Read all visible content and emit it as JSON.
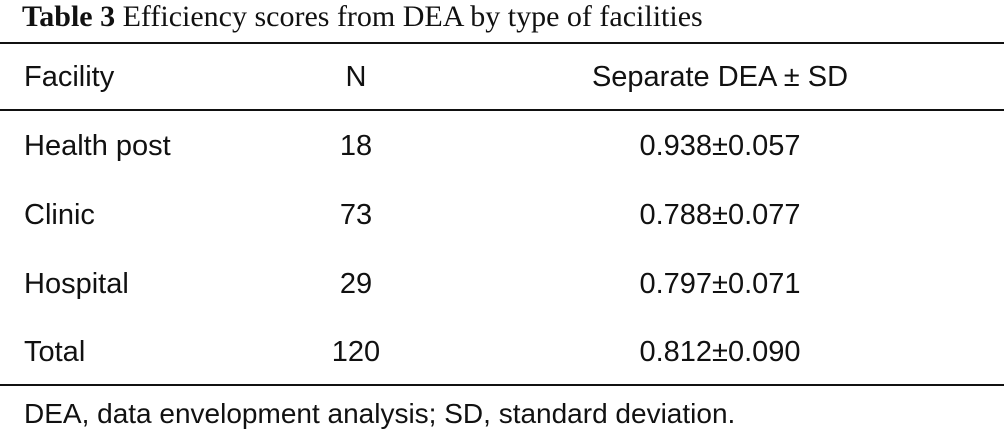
{
  "caption": {
    "label": "Table 3",
    "text": "Efficiency scores from DEA by type of facilities"
  },
  "table": {
    "headers": {
      "facility": "Facility",
      "n": "N",
      "dea": "Separate DEA ± SD"
    },
    "rows": [
      {
        "facility": "Health post",
        "n": "18",
        "dea": "0.938±0.057"
      },
      {
        "facility": "Clinic",
        "n": "73",
        "dea": "0.788±0.077"
      },
      {
        "facility": "Hospital",
        "n": "29",
        "dea": "0.797±0.071"
      },
      {
        "facility": "Total",
        "n": "120",
        "dea": "0.812±0.090"
      }
    ]
  },
  "footnote": "DEA, data envelopment analysis; SD, standard deviation."
}
